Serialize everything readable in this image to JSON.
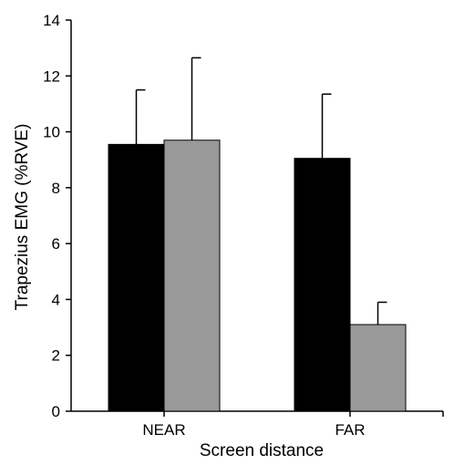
{
  "chart_data": {
    "type": "bar",
    "categories": [
      "NEAR",
      "FAR"
    ],
    "series": [
      {
        "name": "",
        "color": "#000000",
        "values": [
          9.55,
          9.05
        ],
        "error": [
          1.95,
          2.3
        ]
      },
      {
        "name": "",
        "color": "#999999",
        "values": [
          9.7,
          3.1
        ],
        "error": [
          2.95,
          0.8
        ]
      }
    ],
    "ylim": [
      0,
      14
    ],
    "yticks": [
      "0",
      "2",
      "4",
      "6",
      "8",
      "10",
      "12",
      "14"
    ],
    "xlabel": "Screen distance",
    "ylabel": "Trapezius EMG (%RVE)",
    "error_bars": "upper",
    "grid": false,
    "legend": "none"
  }
}
